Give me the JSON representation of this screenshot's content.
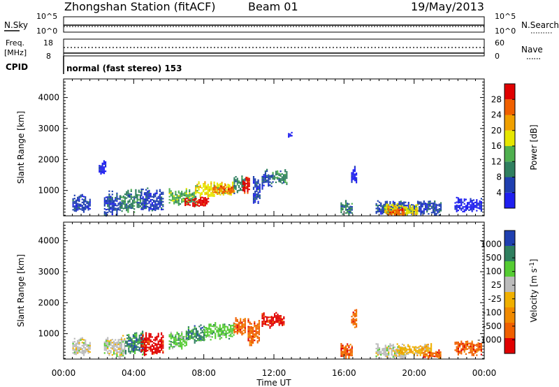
{
  "header": {
    "station": "Zhongshan Station (fitACF)",
    "beam": "Beam 01",
    "date": "19/May/2013"
  },
  "noise_panel": {
    "left_label": "N.Sky",
    "left_top": "10^5",
    "left_bottom": "10^0",
    "right_label": "N.Search",
    "right_top": "10^5",
    "right_bottom": "10^0"
  },
  "freq_panel": {
    "left_label_1": "Freq.",
    "left_label_2": "[MHz]",
    "left_top": "18",
    "left_bottom": "8",
    "right_label": "Nave",
    "right_top": "60",
    "right_bottom": "0"
  },
  "cpid": {
    "label": "CPID",
    "text": "normal (fast stereo) 153"
  },
  "colors": {
    "power": [
      "#1f1ff0",
      "#1f3fb0",
      "#2f7f5f",
      "#4fb04f",
      "#e6e600",
      "#f0a000",
      "#f06000",
      "#e00000"
    ],
    "velocity": [
      "#e00000",
      "#f06000",
      "#f08a00",
      "#f0b000",
      "#bbbbbb",
      "#55cc33",
      "#2f7f5f",
      "#1f3fb0"
    ]
  },
  "chart_data": [
    {
      "type": "heatmap",
      "quantity": "Power",
      "xlabel": "",
      "ylabel": "Slant Range [km]",
      "xlim": [
        "00:00",
        "24:00"
      ],
      "ylim": [
        180,
        4600
      ],
      "y_ticks": [
        "1000",
        "2000",
        "3000",
        "4000"
      ],
      "colorbar_label": "Power [dB]",
      "colorbar_ticks": [
        "4",
        "8",
        "12",
        "16",
        "20",
        "24",
        "28"
      ],
      "colorbar_range": [
        0,
        32
      ],
      "regions": [
        {
          "t0": 0.5,
          "t1": 1.5,
          "r0": 300,
          "r1": 900,
          "level": 2
        },
        {
          "t0": 2.0,
          "t1": 2.4,
          "r0": 1500,
          "r1": 2000,
          "level": 1
        },
        {
          "t0": 2.3,
          "t1": 3.2,
          "r0": 200,
          "r1": 1000,
          "level": 2
        },
        {
          "t0": 3.2,
          "t1": 4.4,
          "r0": 300,
          "r1": 1100,
          "level": 3
        },
        {
          "t0": 4.4,
          "t1": 5.7,
          "r0": 300,
          "r1": 1100,
          "level": 2
        },
        {
          "t0": 6.0,
          "t1": 7.5,
          "r0": 500,
          "r1": 1100,
          "level": 4
        },
        {
          "t0": 6.9,
          "t1": 8.3,
          "r0": 500,
          "r1": 800,
          "level": 8
        },
        {
          "t0": 7.5,
          "t1": 9.7,
          "r0": 800,
          "r1": 1300,
          "level": 5
        },
        {
          "t0": 8.5,
          "t1": 9.7,
          "r0": 900,
          "r1": 1200,
          "level": 7
        },
        {
          "t0": 9.7,
          "t1": 10.4,
          "r0": 900,
          "r1": 1500,
          "level": 3
        },
        {
          "t0": 10.2,
          "t1": 10.6,
          "r0": 900,
          "r1": 1500,
          "level": 8
        },
        {
          "t0": 10.8,
          "t1": 11.2,
          "r0": 500,
          "r1": 1500,
          "level": 2
        },
        {
          "t0": 11.3,
          "t1": 11.9,
          "r0": 1000,
          "r1": 1700,
          "level": 2
        },
        {
          "t0": 11.9,
          "t1": 12.7,
          "r0": 1200,
          "r1": 1700,
          "level": 3
        },
        {
          "t0": 12.8,
          "t1": 13.0,
          "r0": 2700,
          "r1": 2900,
          "level": 1
        },
        {
          "t0": 15.8,
          "t1": 16.5,
          "r0": 200,
          "r1": 700,
          "level": 3
        },
        {
          "t0": 16.4,
          "t1": 16.7,
          "r0": 1200,
          "r1": 1800,
          "level": 1
        },
        {
          "t0": 17.8,
          "t1": 21.5,
          "r0": 200,
          "r1": 700,
          "level": 2
        },
        {
          "t0": 18.3,
          "t1": 20.2,
          "r0": 200,
          "r1": 600,
          "level": 5
        },
        {
          "t0": 18.5,
          "t1": 19.4,
          "r0": 200,
          "r1": 450,
          "level": 7
        },
        {
          "t0": 22.3,
          "t1": 23.8,
          "r0": 300,
          "r1": 800,
          "level": 1
        }
      ]
    },
    {
      "type": "heatmap",
      "quantity": "Velocity",
      "xlabel": "Time UT",
      "ylabel": "Slant Range [km]",
      "xlim": [
        "00:00",
        "24:00"
      ],
      "ylim": [
        180,
        4600
      ],
      "x_ticks": [
        "00:00",
        "04:00",
        "08:00",
        "12:00",
        "16:00",
        "20:00",
        "00:00"
      ],
      "y_ticks": [
        "1000",
        "2000",
        "3000",
        "4000"
      ],
      "colorbar_label": "Velocity [m s^-1]",
      "colorbar_ticks": [
        "1000",
        "500",
        "100",
        "25",
        "-25",
        "-100",
        "-500",
        "-1000"
      ],
      "regions": [
        {
          "t0": 0.5,
          "t1": 1.5,
          "r0": 300,
          "r1": 900,
          "level": 5
        },
        {
          "t0": 2.3,
          "t1": 3.5,
          "r0": 200,
          "r1": 1000,
          "level": 5
        },
        {
          "t0": 3.5,
          "t1": 4.6,
          "r0": 300,
          "r1": 1100,
          "level": 7
        },
        {
          "t0": 4.4,
          "t1": 5.7,
          "r0": 300,
          "r1": 1100,
          "level": 1
        },
        {
          "t0": 6.0,
          "t1": 7.0,
          "r0": 500,
          "r1": 1100,
          "level": 6
        },
        {
          "t0": 7.0,
          "t1": 8.0,
          "r0": 700,
          "r1": 1300,
          "level": 7
        },
        {
          "t0": 8.0,
          "t1": 9.7,
          "r0": 800,
          "r1": 1400,
          "level": 6
        },
        {
          "t0": 9.7,
          "t1": 10.4,
          "r0": 900,
          "r1": 1600,
          "level": 2
        },
        {
          "t0": 10.5,
          "t1": 11.2,
          "r0": 600,
          "r1": 1500,
          "level": 2
        },
        {
          "t0": 11.3,
          "t1": 12.6,
          "r0": 1200,
          "r1": 1700,
          "level": 1
        },
        {
          "t0": 15.8,
          "t1": 16.5,
          "r0": 200,
          "r1": 700,
          "level": 2
        },
        {
          "t0": 16.4,
          "t1": 16.7,
          "r0": 1200,
          "r1": 1800,
          "level": 2
        },
        {
          "t0": 17.8,
          "t1": 19.5,
          "r0": 200,
          "r1": 700,
          "level": 5
        },
        {
          "t0": 19.0,
          "t1": 21.0,
          "r0": 300,
          "r1": 700,
          "level": 4
        },
        {
          "t0": 20.5,
          "t1": 21.5,
          "r0": 200,
          "r1": 500,
          "level": 2
        },
        {
          "t0": 22.3,
          "t1": 23.8,
          "r0": 300,
          "r1": 800,
          "level": 2
        }
      ]
    }
  ]
}
